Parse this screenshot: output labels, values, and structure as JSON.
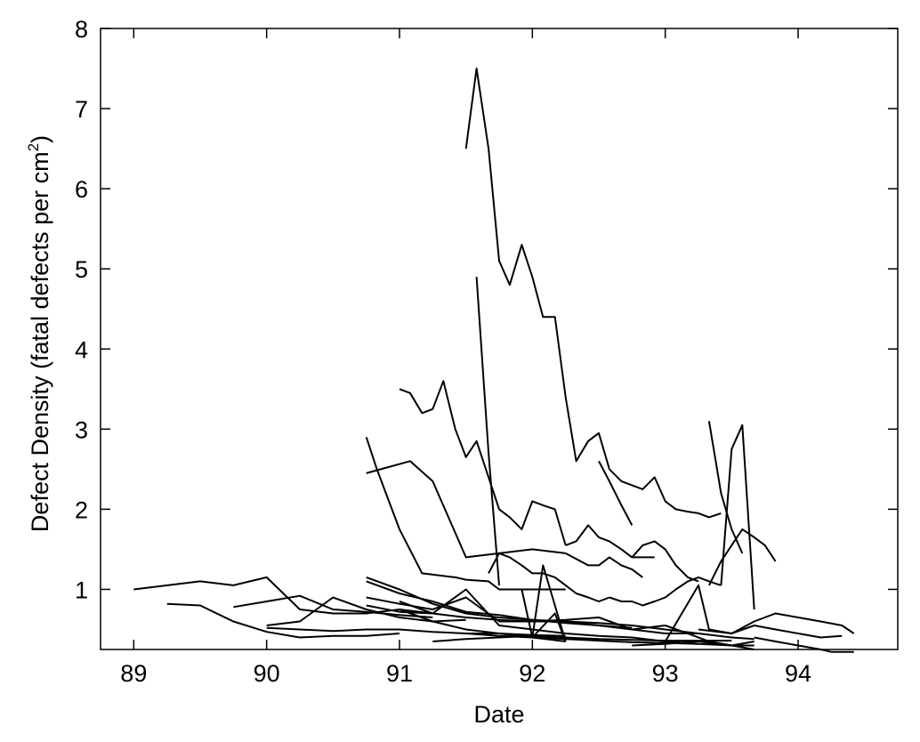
{
  "chart_data": {
    "type": "line",
    "title": "",
    "xlabel": "Date",
    "ylabel_main": "Defect Density (fatal defects per cm",
    "ylabel_superscript": "2",
    "ylabel_close": ")",
    "xlim": [
      88.75,
      94.75
    ],
    "ylim": [
      0.25,
      8
    ],
    "x_ticks": [
      89,
      90,
      91,
      92,
      93,
      94
    ],
    "y_ticks": [
      1,
      2,
      3,
      4,
      5,
      6,
      7,
      8
    ],
    "x_tick_labels": [
      "89",
      "90",
      "91",
      "92",
      "93",
      "94"
    ],
    "y_tick_labels": [
      "1",
      "2",
      "3",
      "4",
      "5",
      "6",
      "7",
      "8"
    ],
    "line_color": "#000000",
    "grid": false,
    "legend": "none",
    "series": [
      {
        "x": [
          91.5,
          91.58,
          91.67,
          91.75,
          91.83,
          91.92,
          92.0,
          92.08,
          92.17,
          92.25,
          92.33,
          92.42,
          92.5,
          92.58
        ],
        "y": [
          6.5,
          7.5,
          6.5,
          5.1,
          4.8,
          5.3,
          4.9,
          4.4,
          4.4,
          3.4,
          2.6,
          2.85,
          2.95,
          2.5
        ]
      },
      {
        "x": [
          92.58,
          92.67,
          92.75,
          92.83,
          92.92,
          93.0,
          93.08,
          93.17,
          93.25,
          93.33,
          93.42
        ],
        "y": [
          2.5,
          2.35,
          2.3,
          2.25,
          2.4,
          2.1,
          2.0,
          1.97,
          1.95,
          1.9,
          1.95
        ]
      },
      {
        "x": [
          91.0,
          91.08,
          91.17,
          91.25,
          91.33,
          91.42,
          91.5,
          91.58,
          91.67,
          91.75,
          91.83,
          91.92,
          92.0,
          92.08,
          92.17,
          92.25
        ],
        "y": [
          3.5,
          3.45,
          3.2,
          3.25,
          3.6,
          3.0,
          2.65,
          2.85,
          2.4,
          2.0,
          1.9,
          1.75,
          2.1,
          2.05,
          2.0,
          1.55
        ]
      },
      {
        "x": [
          92.25,
          92.33,
          92.42,
          92.5,
          92.58,
          92.67,
          92.75,
          92.83,
          92.92
        ],
        "y": [
          1.55,
          1.6,
          1.8,
          1.65,
          1.6,
          1.5,
          1.4,
          1.4,
          1.4
        ]
      },
      {
        "x": [
          90.75,
          91.08,
          91.25,
          91.5,
          91.75,
          92.0,
          92.25
        ],
        "y": [
          2.45,
          2.6,
          2.35,
          1.4,
          1.45,
          1.5,
          1.45
        ]
      },
      {
        "x": [
          92.25,
          92.42,
          92.5,
          92.58,
          92.67,
          92.75,
          92.83
        ],
        "y": [
          1.45,
          1.3,
          1.3,
          1.4,
          1.3,
          1.25,
          1.15
        ]
      },
      {
        "x": [
          90.75,
          90.83,
          90.92,
          91.0,
          91.17,
          91.42,
          91.5
        ],
        "y": [
          2.9,
          2.5,
          2.1,
          1.75,
          1.2,
          1.15,
          1.12
        ]
      },
      {
        "x": [
          91.5,
          91.67,
          91.75,
          92.0,
          92.08,
          92.25
        ],
        "y": [
          1.12,
          1.1,
          1.0,
          1.0,
          1.0,
          1.0
        ]
      },
      {
        "x": [
          91.58,
          91.67,
          91.75
        ],
        "y": [
          4.9,
          2.7,
          1.05
        ]
      },
      {
        "x": [
          92.5,
          92.58,
          92.67,
          92.75
        ],
        "y": [
          2.6,
          2.35,
          2.05,
          1.8
        ]
      },
      {
        "x": [
          93.33,
          93.42,
          93.5,
          93.58
        ],
        "y": [
          3.1,
          2.2,
          1.75,
          1.45
        ]
      },
      {
        "x": [
          93.42,
          93.5,
          93.58,
          93.67
        ],
        "y": [
          1.05,
          2.75,
          3.05,
          0.75
        ]
      },
      {
        "x": [
          93.33,
          93.42,
          93.5,
          93.58,
          93.67,
          93.75,
          93.83
        ],
        "y": [
          1.05,
          1.35,
          1.55,
          1.75,
          1.65,
          1.55,
          1.35
        ]
      },
      {
        "x": [
          91.67,
          91.75,
          91.83,
          91.92,
          92.0,
          92.08,
          92.17,
          92.25,
          92.33,
          92.42,
          92.5,
          92.58
        ],
        "y": [
          1.2,
          1.45,
          1.4,
          1.3,
          1.2,
          1.2,
          1.15,
          1.05,
          0.95,
          0.9,
          0.85,
          0.9
        ]
      },
      {
        "x": [
          92.58,
          92.67,
          92.75,
          92.83,
          92.92,
          93.0,
          93.08,
          93.17,
          93.25,
          93.33,
          93.42
        ],
        "y": [
          0.9,
          0.85,
          0.85,
          0.8,
          0.85,
          0.9,
          1.0,
          1.1,
          1.15,
          1.1,
          1.05
        ]
      },
      {
        "x": [
          92.75,
          92.83,
          92.92,
          93.0,
          93.08,
          93.17,
          93.25
        ],
        "y": [
          1.4,
          1.55,
          1.6,
          1.5,
          1.3,
          1.15,
          1.1
        ]
      },
      {
        "x": [
          89.0,
          89.5,
          89.75,
          90.0,
          90.25,
          90.5,
          90.75,
          91.0,
          91.25
        ],
        "y": [
          1.0,
          1.1,
          1.05,
          1.15,
          0.75,
          0.7,
          0.7,
          0.75,
          0.7
        ]
      },
      {
        "x": [
          89.25,
          89.5,
          89.75,
          90.0,
          90.25,
          90.5,
          90.75,
          91.0
        ],
        "y": [
          0.82,
          0.8,
          0.6,
          0.47,
          0.4,
          0.42,
          0.42,
          0.45
        ]
      },
      {
        "x": [
          89.75,
          90.0,
          90.25,
          90.5,
          90.75,
          91.0,
          91.25
        ],
        "y": [
          0.78,
          0.85,
          0.92,
          0.75,
          0.72,
          0.68,
          0.65
        ]
      },
      {
        "x": [
          90.0,
          90.25,
          90.5,
          90.75,
          91.0,
          91.25,
          91.5
        ],
        "y": [
          0.55,
          0.6,
          0.9,
          0.75,
          0.65,
          0.6,
          0.62
        ]
      },
      {
        "x": [
          90.0,
          90.25,
          90.5,
          90.75,
          91.0,
          91.25,
          91.5,
          91.75,
          92.0,
          92.25
        ],
        "y": [
          0.52,
          0.5,
          0.48,
          0.5,
          0.5,
          0.47,
          0.45,
          0.45,
          0.43,
          0.42
        ]
      },
      {
        "x": [
          90.75,
          91.0,
          91.25,
          91.5,
          91.75,
          92.0,
          92.25,
          92.5,
          92.75
        ],
        "y": [
          1.15,
          1.0,
          0.82,
          0.7,
          0.65,
          0.62,
          0.6,
          0.55,
          0.52
        ]
      },
      {
        "x": [
          90.75,
          91.0,
          91.25,
          91.5,
          91.75,
          92.0,
          92.25,
          92.5,
          92.75,
          93.0,
          93.25
        ],
        "y": [
          1.1,
          0.95,
          0.85,
          0.72,
          0.68,
          0.62,
          0.58,
          0.55,
          0.5,
          0.45,
          0.45
        ]
      },
      {
        "x": [
          90.75,
          91.0,
          91.25,
          91.5,
          91.75,
          92.0,
          92.25,
          92.5,
          92.75,
          93.0
        ],
        "y": [
          0.9,
          0.82,
          0.75,
          0.9,
          0.6,
          0.6,
          0.62,
          0.65,
          0.5,
          0.55
        ]
      },
      {
        "x": [
          90.75,
          91.0,
          91.25,
          91.5,
          91.75,
          92.0,
          92.25,
          92.5,
          92.75,
          93.0,
          93.25,
          93.5,
          93.67
        ],
        "y": [
          0.8,
          0.72,
          0.7,
          0.65,
          0.62,
          0.6,
          0.6,
          0.58,
          0.55,
          0.5,
          0.45,
          0.4,
          0.38
        ]
      },
      {
        "x": [
          91.0,
          91.25,
          91.5,
          91.75,
          92.0,
          92.25,
          92.5,
          92.75,
          93.0,
          93.25
        ],
        "y": [
          0.85,
          0.7,
          1.0,
          0.55,
          0.5,
          0.45,
          0.42,
          0.4,
          0.35,
          0.32
        ]
      },
      {
        "x": [
          91.0,
          91.25,
          91.5,
          91.75,
          92.0,
          92.25
        ],
        "y": [
          0.75,
          0.6,
          0.5,
          0.45,
          0.4,
          0.35
        ]
      },
      {
        "x": [
          91.25,
          91.5,
          91.75,
          92.0,
          92.25,
          92.5,
          92.75,
          93.0,
          93.25,
          93.5
        ],
        "y": [
          0.35,
          0.38,
          0.4,
          0.42,
          0.4,
          0.38,
          0.37,
          0.36,
          0.36,
          0.36
        ]
      },
      {
        "x": [
          91.5,
          91.75,
          92.0,
          92.25,
          92.5,
          92.75,
          93.0,
          93.25,
          93.5,
          93.67
        ],
        "y": [
          0.45,
          0.42,
          0.4,
          0.38,
          0.36,
          0.34,
          0.33,
          0.32,
          0.3,
          0.3
        ]
      },
      {
        "x": [
          92.0,
          92.08,
          92.17,
          92.25
        ],
        "y": [
          0.4,
          1.3,
          0.8,
          0.35
        ]
      },
      {
        "x": [
          91.92,
          92.0,
          92.17,
          92.25
        ],
        "y": [
          1.0,
          0.4,
          0.7,
          0.35
        ]
      },
      {
        "x": [
          93.0,
          93.25,
          93.33,
          93.5,
          93.67,
          93.83,
          94.0,
          94.17,
          94.33,
          94.42
        ],
        "y": [
          0.35,
          1.05,
          0.5,
          0.45,
          0.6,
          0.7,
          0.65,
          0.6,
          0.55,
          0.45
        ]
      },
      {
        "x": [
          93.25,
          93.5,
          93.67,
          93.83,
          94.0,
          94.17,
          94.33
        ],
        "y": [
          0.5,
          0.45,
          0.55,
          0.5,
          0.45,
          0.4,
          0.42
        ]
      },
      {
        "x": [
          93.67,
          93.83,
          94.0,
          94.17,
          94.25,
          94.42
        ],
        "y": [
          0.4,
          0.35,
          0.3,
          0.25,
          0.22,
          0.22
        ]
      },
      {
        "x": [
          93.0,
          93.17,
          93.33,
          93.5,
          93.67
        ],
        "y": [
          0.55,
          0.45,
          0.35,
          0.3,
          0.25
        ]
      },
      {
        "x": [
          92.75,
          93.0,
          93.25,
          93.5,
          93.67
        ],
        "y": [
          0.3,
          0.32,
          0.35,
          0.3,
          0.35
        ]
      }
    ]
  }
}
